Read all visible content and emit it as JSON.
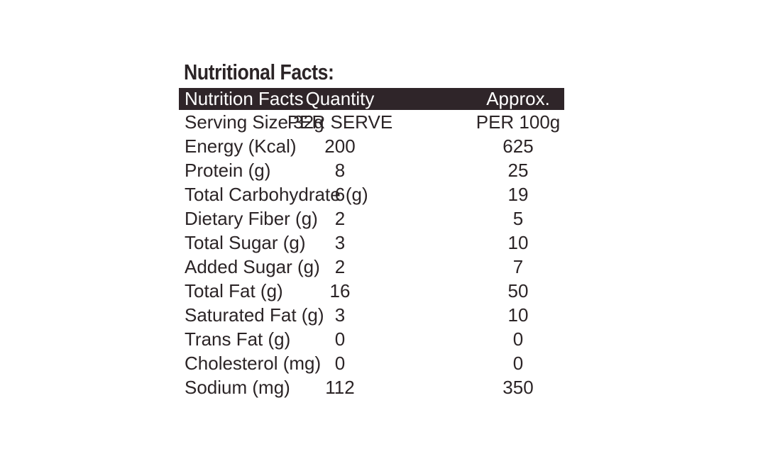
{
  "heading": "Nutritional Facts:",
  "table": {
    "header": {
      "name": "Nutrition Facts",
      "quantity": "Quantity",
      "approx": "Approx."
    },
    "rows": [
      {
        "name": "Serving Size 32g",
        "quantity": "PER SERVE",
        "approx": "PER 100g"
      },
      {
        "name": "Energy (Kcal)",
        "quantity": "200",
        "approx": "625"
      },
      {
        "name": "Protein (g)",
        "quantity": "8",
        "approx": "25"
      },
      {
        "name": "Total Carbohydrate (g)",
        "quantity": "6",
        "approx": "19"
      },
      {
        "name": "Dietary Fiber (g)",
        "quantity": "2",
        "approx": "5"
      },
      {
        "name": "Total Sugar (g)",
        "quantity": "3",
        "approx": "10"
      },
      {
        "name": "Added Sugar (g)",
        "quantity": "2",
        "approx": "7"
      },
      {
        "name": "Total Fat (g)",
        "quantity": "16",
        "approx": "50"
      },
      {
        "name": "Saturated Fat (g)",
        "quantity": "3",
        "approx": "10"
      },
      {
        "name": "Trans Fat (g)",
        "quantity": "0",
        "approx": "0"
      },
      {
        "name": "Cholesterol (mg)",
        "quantity": "0",
        "approx": "0"
      },
      {
        "name": "Sodium (mg)",
        "quantity": "112",
        "approx": "350"
      }
    ]
  }
}
